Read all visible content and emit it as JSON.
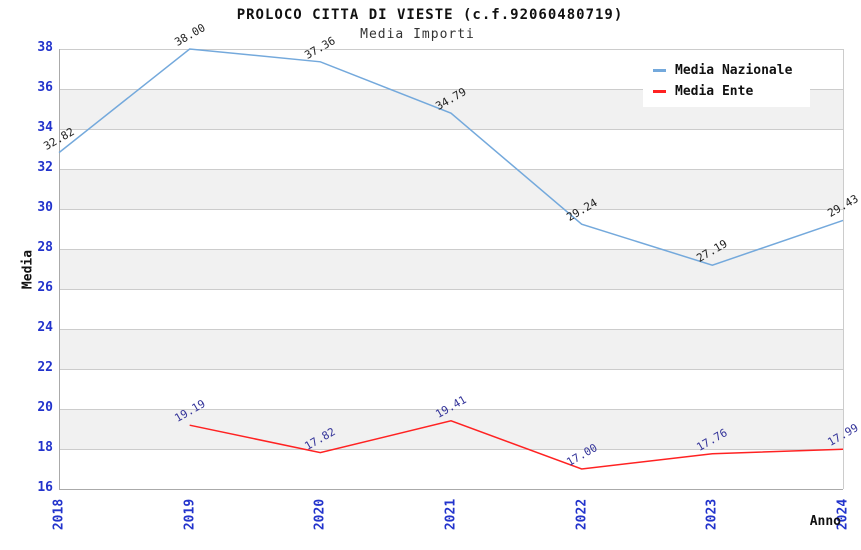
{
  "header": {
    "title": "PROLOCO CITTA DI VIESTE (c.f.92060480719)",
    "subtitle": "Media Importi"
  },
  "chart_data": {
    "type": "line",
    "title": "PROLOCO CITTA DI VIESTE (c.f.92060480719)",
    "subtitle": "Media Importi",
    "xlabel": "Anno",
    "ylabel": "Media",
    "categories": [
      "2018",
      "2019",
      "2020",
      "2021",
      "2022",
      "2023",
      "2024"
    ],
    "series": [
      {
        "name": "Media Nazionale",
        "color": "#74a9dc",
        "label_color": "#222222",
        "categories": [
          "2018",
          "2019",
          "2020",
          "2021",
          "2022",
          "2023",
          "2024"
        ],
        "values": [
          32.82,
          38.0,
          37.36,
          34.79,
          29.24,
          27.19,
          29.43
        ]
      },
      {
        "name": "Media Ente",
        "color": "#ff2222",
        "label_color": "#333399",
        "categories": [
          "2019",
          "2020",
          "2021",
          "2022",
          "2023",
          "2024"
        ],
        "values": [
          19.19,
          17.82,
          19.41,
          17.0,
          17.76,
          17.99
        ]
      }
    ],
    "ylim": [
      16,
      38
    ],
    "ytick_step": 2,
    "grid": true,
    "legend_position": "top-right",
    "styles": {
      "tick_label_color": "#2233cc",
      "band_color": "#f1f1f1",
      "gridline_color": "#cccccc",
      "axis_frame_color": "#aaaaaa"
    }
  },
  "legend": {
    "items": [
      {
        "label": "Media Nazionale",
        "color": "#74a9dc"
      },
      {
        "label": "Media Ente",
        "color": "#ff2222"
      }
    ]
  }
}
